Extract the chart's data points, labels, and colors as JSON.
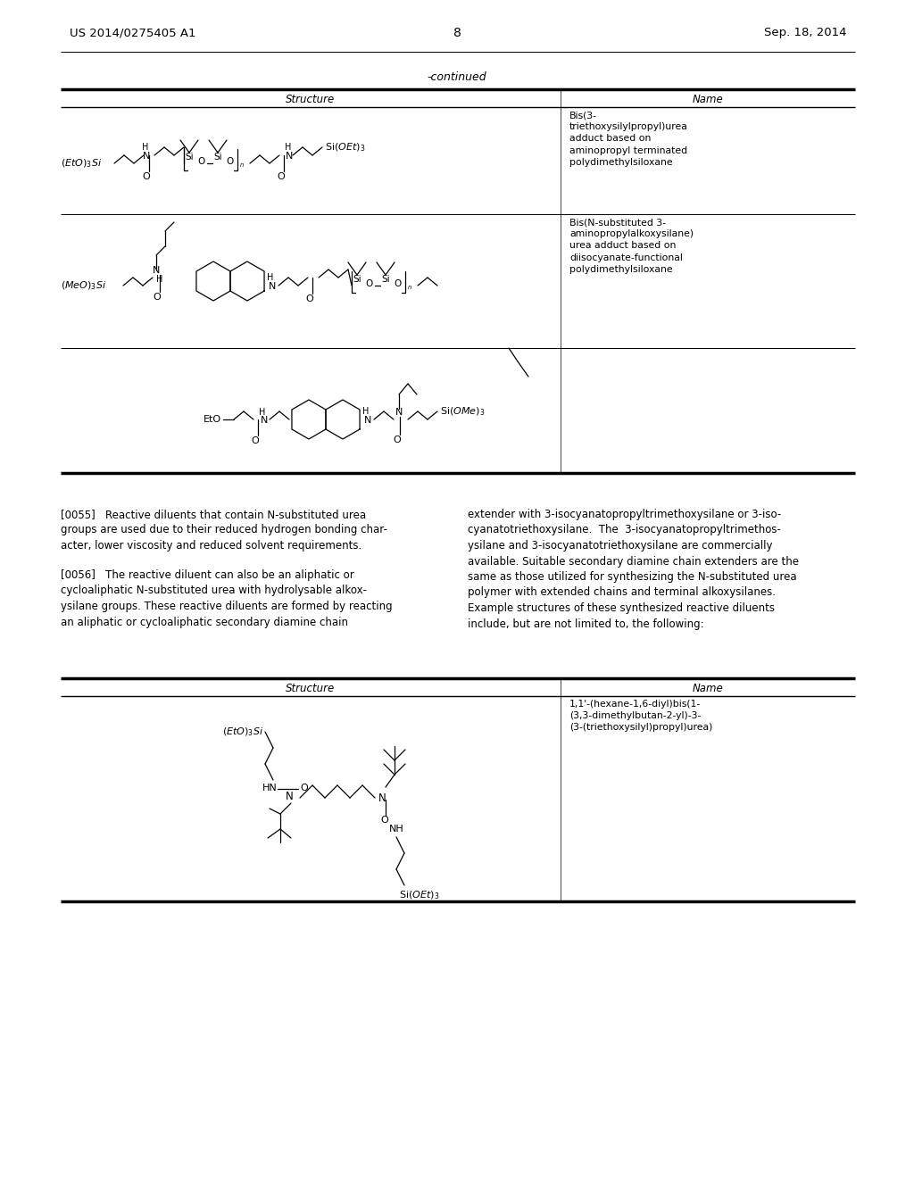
{
  "patent_number": "US 2014/0275405 A1",
  "patent_date": "Sep. 18, 2014",
  "page_number": "8",
  "continued_label": "-continued",
  "background_color": "#ffffff",
  "t1_header_structure": "Structure",
  "t1_header_name": "Name",
  "name1": "Bis(3-\ntriethoxysilylpropyl)urea\nadduct based on\naminopropyl terminated\npolydimethylsiloxane",
  "name2": "Bis(N-substituted 3-\naminopropylalkoxysilane)\nurea adduct based on\ndiisocyanate-functional\npolydimethylsiloxane",
  "para0055_left": "[0055]   Reactive diluents that contain N-substituted urea\ngroups are used due to their reduced hydrogen bonding char-\nacter, lower viscosity and reduced solvent requirements.",
  "para0056_left": "[0056]   The reactive diluent can also be an aliphatic or\ncycloaliphatic N-substituted urea with hydrolysable alkox-\nysilane groups. These reactive diluents are formed by reacting\nan aliphatic or cycloaliphatic secondary diamine chain",
  "para_right": "extender with 3-isocyanatopropyltrimethoxysilane or 3-iso-\ncyanatotriethoxysilane.  The  3-isocyanatopropyltrimethos-\nysilane and 3-isocyanatotriethoxysilane are commercially\navailable. Suitable secondary diamine chain extenders are the\nsame as those utilized for synthesizing the N-substituted urea\npolymer with extended chains and terminal alkoxysilanes.\nExample structures of these synthesized reactive diluents\ninclude, but are not limited to, the following:",
  "t2_header_structure": "Structure",
  "t2_header_name": "Name",
  "t2_name1": "1,1'-(hexane-1,6-diyl)bis(1-\n(3,3-dimethylbutan-2-yl)-3-\n(3-(triethoxysilyl)propyl)urea)"
}
